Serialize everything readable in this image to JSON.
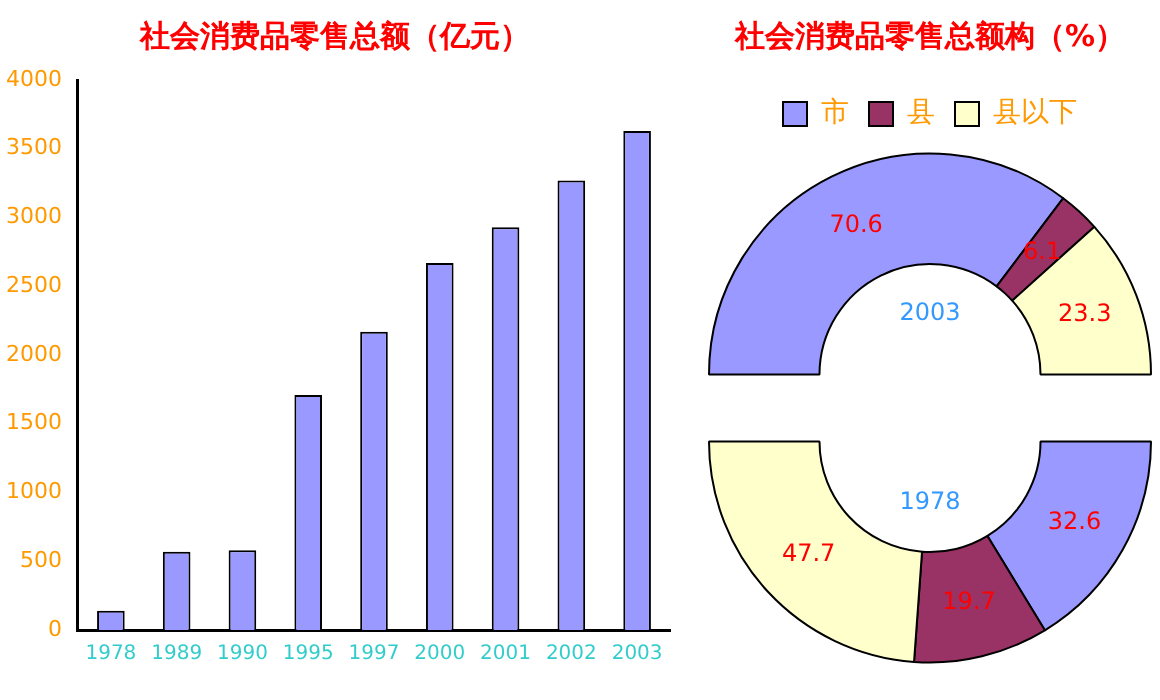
{
  "chart_data": [
    {
      "type": "bar",
      "title": "社会消费品零售总额（亿元）",
      "categories": [
        "1978",
        "1989",
        "1990",
        "1995",
        "1997",
        "2000",
        "2001",
        "2002",
        "2003"
      ],
      "values": [
        140,
        570,
        580,
        1710,
        2170,
        2670,
        2930,
        3270,
        3630
      ],
      "color": "#9999ff",
      "ylim": [
        0,
        4000
      ],
      "yticks": [
        0,
        500,
        1000,
        1500,
        2000,
        2500,
        3000,
        3500,
        4000
      ],
      "grid": false,
      "legend": false
    },
    {
      "type": "donut",
      "title": "社会消费品零售总额构（%）",
      "categories": [
        "市",
        "县",
        "县以下"
      ],
      "colors": [
        "#9999ff",
        "#993366",
        "#ffffcc"
      ],
      "data_labels": true,
      "legend": "top",
      "series": [
        {
          "name": "2003",
          "values": [
            70.6,
            6.1,
            23.3
          ]
        },
        {
          "name": "1978",
          "values": [
            32.6,
            19.7,
            47.7
          ]
        }
      ]
    }
  ]
}
